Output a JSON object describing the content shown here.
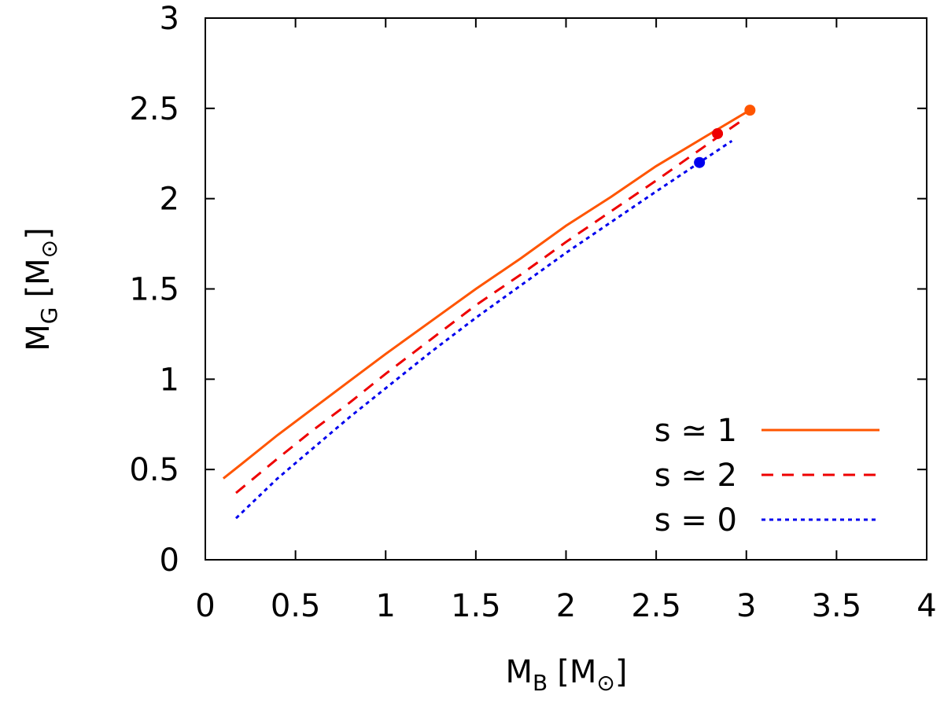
{
  "chart_data": {
    "type": "line",
    "xlabel": {
      "main": "M",
      "sub": "B",
      "unit": "[M",
      "unit_sub": "⊙",
      "close": "]"
    },
    "ylabel": {
      "main": "M",
      "sub": "G",
      "unit": "[M",
      "unit_sub": "⊙",
      "close": "]"
    },
    "xlim": [
      0,
      4
    ],
    "ylim": [
      0,
      3
    ],
    "xticks": [
      0,
      0.5,
      1,
      1.5,
      2,
      2.5,
      3,
      3.5,
      4
    ],
    "xtick_labels": [
      "0",
      "0.5",
      "1",
      "1.5",
      "2",
      "2.5",
      "3",
      "3.5",
      "4"
    ],
    "yticks": [
      0,
      0.5,
      1,
      1.5,
      2,
      2.5,
      3
    ],
    "ytick_labels": [
      "0",
      "0.5",
      "1",
      "1.5",
      "2",
      "2.5",
      "3"
    ],
    "grid": false,
    "legend_position": "bottom-right",
    "series": [
      {
        "name": "s ≃ 1",
        "color": "#ff5500",
        "style": "solid",
        "points": [
          [
            0.1,
            0.45
          ],
          [
            0.2,
            0.53
          ],
          [
            0.4,
            0.69
          ],
          [
            0.6,
            0.84
          ],
          [
            0.8,
            0.99
          ],
          [
            1.0,
            1.14
          ],
          [
            1.25,
            1.32
          ],
          [
            1.5,
            1.5
          ],
          [
            1.75,
            1.67
          ],
          [
            2.0,
            1.85
          ],
          [
            2.25,
            2.01
          ],
          [
            2.5,
            2.18
          ],
          [
            2.75,
            2.33
          ],
          [
            3.02,
            2.49
          ]
        ],
        "endpoint": [
          3.02,
          2.49
        ]
      },
      {
        "name": "s ≃ 2",
        "color": "#ee0000",
        "style": "dashed",
        "points": [
          [
            0.17,
            0.37
          ],
          [
            0.4,
            0.56
          ],
          [
            0.6,
            0.72
          ],
          [
            0.8,
            0.87
          ],
          [
            1.0,
            1.03
          ],
          [
            1.25,
            1.22
          ],
          [
            1.5,
            1.41
          ],
          [
            1.75,
            1.58
          ],
          [
            2.0,
            1.76
          ],
          [
            2.25,
            1.93
          ],
          [
            2.5,
            2.1
          ],
          [
            2.84,
            2.34
          ],
          [
            3.0,
            2.45
          ]
        ],
        "endpoint": [
          2.84,
          2.36
        ]
      },
      {
        "name": "s = 0",
        "color": "#0000ee",
        "style": "dotted",
        "points": [
          [
            0.17,
            0.23
          ],
          [
            0.4,
            0.45
          ],
          [
            0.6,
            0.62
          ],
          [
            0.8,
            0.79
          ],
          [
            1.0,
            0.95
          ],
          [
            1.25,
            1.15
          ],
          [
            1.5,
            1.34
          ],
          [
            1.75,
            1.52
          ],
          [
            2.0,
            1.7
          ],
          [
            2.25,
            1.87
          ],
          [
            2.5,
            2.04
          ],
          [
            2.74,
            2.2
          ],
          [
            2.92,
            2.32
          ]
        ],
        "endpoint": [
          2.74,
          2.2
        ]
      }
    ]
  }
}
